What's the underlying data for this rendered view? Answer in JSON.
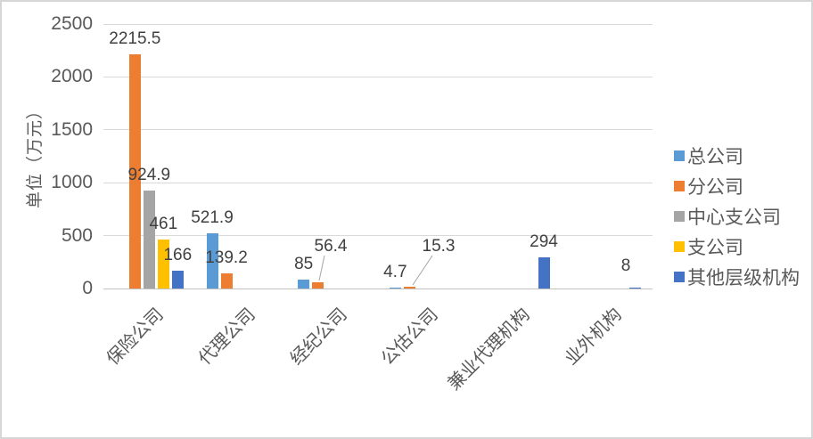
{
  "chart_data": {
    "type": "bar",
    "title": "",
    "xlabel": "",
    "ylabel": "单位（万元）",
    "categories": [
      "保险公司",
      "代理公司",
      "经纪公司",
      "公估公司",
      "兼业代理机构",
      "业外机构"
    ],
    "series": [
      {
        "name": "总公司",
        "color": "#5B9BD5",
        "values": [
          null,
          521.9,
          85,
          4.7,
          null,
          null
        ]
      },
      {
        "name": "分公司",
        "color": "#ED7D31",
        "values": [
          2215.5,
          139.2,
          56.4,
          15.3,
          null,
          null
        ]
      },
      {
        "name": "中心支公司",
        "color": "#A5A5A5",
        "values": [
          924.9,
          null,
          null,
          null,
          null,
          null
        ]
      },
      {
        "name": "支公司",
        "color": "#FFC000",
        "values": [
          461,
          null,
          null,
          null,
          null,
          null
        ]
      },
      {
        "name": "其他层级机构",
        "color": "#4472C4",
        "values": [
          166,
          null,
          null,
          null,
          294,
          8
        ]
      }
    ],
    "ylim": [
      0,
      2500
    ],
    "yticks": [
      0,
      500,
      1000,
      1500,
      2000,
      2500
    ],
    "grid": true,
    "legend_position": "right",
    "colors": {
      "axis_text": "#595959",
      "data_label_text": "#404040",
      "gridline": "#D9D9D9",
      "baseline": "#C3C3C3",
      "leader_line": "#A6A6A6",
      "frame_border": "#D6D6D6"
    }
  }
}
